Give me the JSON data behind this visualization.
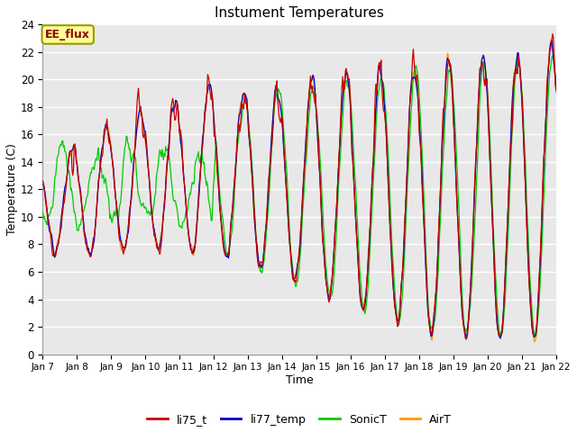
{
  "title": "Instument Temperatures",
  "xlabel": "Time",
  "ylabel": "Temperature (C)",
  "ylim": [
    0,
    24
  ],
  "yticks": [
    0,
    2,
    4,
    6,
    8,
    10,
    12,
    14,
    16,
    18,
    20,
    22,
    24
  ],
  "xtick_labels": [
    "Jan 7",
    "Jan 8",
    "Jan 9",
    "Jan 10",
    "Jan 11",
    "Jan 12",
    "Jan 13",
    "Jan 14",
    "Jan 15",
    "Jan 16",
    "Jan 17",
    "Jan 18",
    "Jan 19",
    "Jan 20",
    "Jan 21",
    "Jan 22"
  ],
  "series_colors": {
    "li75_t": "#cc0000",
    "li77_temp": "#0000cc",
    "SonicT": "#00cc00",
    "AirT": "#ff9900"
  },
  "bg_color": "#e8e8e8",
  "annotation_text": "EE_flux",
  "annotation_bg": "#ffff99",
  "annotation_border": "#999900",
  "figsize": [
    6.4,
    4.8
  ],
  "dpi": 100
}
